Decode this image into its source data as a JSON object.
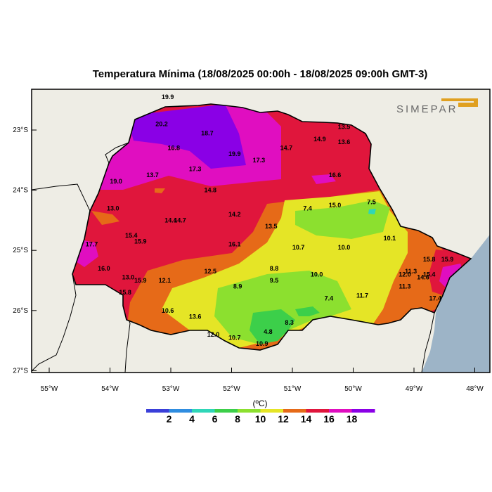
{
  "title": "Temperatura Mínima (18/08/2025 00:00h - 18/08/2025 09:00h GMT-3)",
  "logo": {
    "text": "SIMEPAR",
    "accent": "#e0a020"
  },
  "axes": {
    "lat_labels": [
      "23°S",
      "24°S",
      "25°S",
      "26°S",
      "27°S"
    ],
    "lon_labels": [
      "55°W",
      "54°W",
      "53°W",
      "52°W",
      "51°W",
      "50°W",
      "49°W",
      "48°W"
    ]
  },
  "legend": {
    "unit": "(ºC)",
    "colors": [
      "#3a3fd9",
      "#2f8de0",
      "#2fd6b8",
      "#3ccf4a",
      "#8ce02f",
      "#e5e526",
      "#e66a18",
      "#e0163c",
      "#e00ec0",
      "#8a00e6"
    ],
    "labels": [
      "2",
      "4",
      "6",
      "8",
      "10",
      "12",
      "14",
      "16",
      "18"
    ]
  },
  "colors": {
    "land_outside": "#eeede5",
    "ocean": "#9db4c7",
    "border": "#000000"
  },
  "chart_data": {
    "type": "heatmap",
    "variable": "Temperatura Mínima",
    "unit": "ºC",
    "station_values": [
      {
        "label": "19.9",
        "lon": -53.05,
        "lat": -22.45
      },
      {
        "label": "20.2",
        "lon": -53.15,
        "lat": -22.9
      },
      {
        "label": "18.7",
        "lon": -52.4,
        "lat": -23.05
      },
      {
        "label": "16.8",
        "lon": -52.95,
        "lat": -23.3
      },
      {
        "label": "19.9",
        "lon": -51.95,
        "lat": -23.4
      },
      {
        "label": "17.3",
        "lon": -52.6,
        "lat": -23.65
      },
      {
        "label": "17.3",
        "lon": -51.55,
        "lat": -23.5
      },
      {
        "label": "14.7",
        "lon": -51.1,
        "lat": -23.3
      },
      {
        "label": "14.9",
        "lon": -50.55,
        "lat": -23.15
      },
      {
        "label": "13.5",
        "lon": -50.15,
        "lat": -22.95
      },
      {
        "label": "13.6",
        "lon": -50.15,
        "lat": -23.2
      },
      {
        "label": "16.6",
        "lon": -50.3,
        "lat": -23.75
      },
      {
        "label": "19.0",
        "lon": -53.9,
        "lat": -23.85
      },
      {
        "label": "13.7",
        "lon": -53.3,
        "lat": -23.75
      },
      {
        "label": "14.8",
        "lon": -52.35,
        "lat": -24.0
      },
      {
        "label": "13.0",
        "lon": -53.95,
        "lat": -24.3
      },
      {
        "label": "14.2",
        "lon": -51.95,
        "lat": -24.4
      },
      {
        "label": "7.4",
        "lon": -50.75,
        "lat": -24.3
      },
      {
        "label": "15.0",
        "lon": -50.3,
        "lat": -24.25
      },
      {
        "label": "7.5",
        "lon": -49.7,
        "lat": -24.2
      },
      {
        "label": "14.4",
        "lon": -53.0,
        "lat": -24.5
      },
      {
        "label": "14.7",
        "lon": -52.85,
        "lat": -24.5
      },
      {
        "label": "13.5",
        "lon": -51.35,
        "lat": -24.6
      },
      {
        "label": "15.4",
        "lon": -53.65,
        "lat": -24.75
      },
      {
        "label": "15.9",
        "lon": -53.5,
        "lat": -24.85
      },
      {
        "label": "17.7",
        "lon": -54.3,
        "lat": -24.9
      },
      {
        "label": "16.1",
        "lon": -51.95,
        "lat": -24.9
      },
      {
        "label": "10.1",
        "lon": -49.4,
        "lat": -24.8
      },
      {
        "label": "10.7",
        "lon": -50.9,
        "lat": -24.95
      },
      {
        "label": "10.0",
        "lon": -50.15,
        "lat": -24.95
      },
      {
        "label": "16.0",
        "lon": -54.1,
        "lat": -25.3
      },
      {
        "label": "8.8",
        "lon": -51.3,
        "lat": -25.3
      },
      {
        "label": "12.5",
        "lon": -52.35,
        "lat": -25.35
      },
      {
        "label": "15.8",
        "lon": -48.75,
        "lat": -25.15
      },
      {
        "label": "15.9",
        "lon": -48.45,
        "lat": -25.15
      },
      {
        "label": "13.0",
        "lon": -53.7,
        "lat": -25.45
      },
      {
        "label": "15.9",
        "lon": -53.5,
        "lat": -25.5
      },
      {
        "label": "12.1",
        "lon": -53.1,
        "lat": -25.5
      },
      {
        "label": "9.5",
        "lon": -51.3,
        "lat": -25.5
      },
      {
        "label": "10.0",
        "lon": -50.6,
        "lat": -25.4
      },
      {
        "label": "12.0",
        "lon": -49.15,
        "lat": -25.4
      },
      {
        "label": "11.3",
        "lon": -49.05,
        "lat": -25.35
      },
      {
        "label": "15.4",
        "lon": -48.75,
        "lat": -25.4
      },
      {
        "label": "14.6",
        "lon": -48.85,
        "lat": -25.45
      },
      {
        "label": "15.8",
        "lon": -53.75,
        "lat": -25.7
      },
      {
        "label": "8.9",
        "lon": -51.9,
        "lat": -25.6
      },
      {
        "label": "11.3",
        "lon": -49.15,
        "lat": -25.6
      },
      {
        "label": "7.4",
        "lon": -50.4,
        "lat": -25.8
      },
      {
        "label": "11.7",
        "lon": -49.85,
        "lat": -25.75
      },
      {
        "label": "17.4",
        "lon": -48.65,
        "lat": -25.8
      },
      {
        "label": "10.6",
        "lon": -53.05,
        "lat": -26.0
      },
      {
        "label": "13.6",
        "lon": -52.6,
        "lat": -26.1
      },
      {
        "label": "8.3",
        "lon": -51.05,
        "lat": -26.2
      },
      {
        "label": "12.0",
        "lon": -52.3,
        "lat": -26.4
      },
      {
        "label": "10.7",
        "lon": -51.95,
        "lat": -26.45
      },
      {
        "label": "4.8",
        "lon": -51.4,
        "lat": -26.35
      },
      {
        "label": "10.9",
        "lon": -51.5,
        "lat": -26.55
      }
    ]
  }
}
